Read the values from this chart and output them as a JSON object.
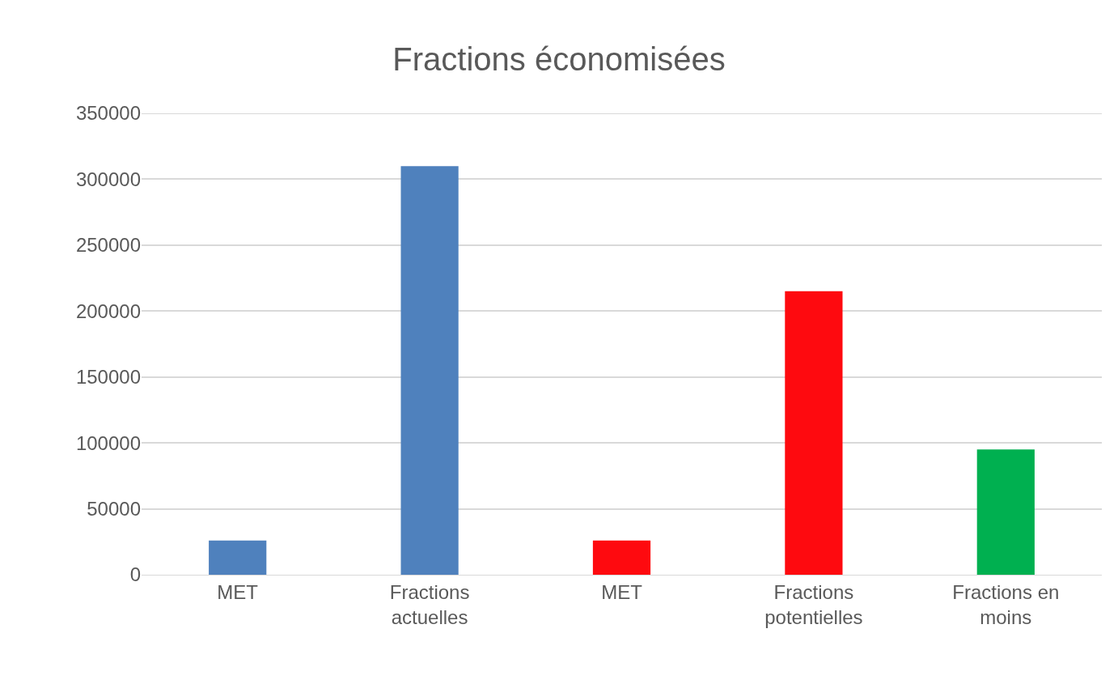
{
  "chart_data": {
    "type": "bar",
    "title": "Fractions économisées",
    "categories": [
      "MET",
      "Fractions actuelles",
      "MET",
      "Fractions potentielles",
      "Fractions en moins"
    ],
    "values": [
      26000,
      310000,
      26000,
      215000,
      95000
    ],
    "colors": [
      "#4f81bd",
      "#4f81bd",
      "#fe0a0f",
      "#fe0a0f",
      "#00b050"
    ],
    "ylim": [
      0,
      350000
    ],
    "yticks": [
      0,
      50000,
      100000,
      150000,
      200000,
      250000,
      300000,
      350000
    ],
    "grid": "y"
  }
}
